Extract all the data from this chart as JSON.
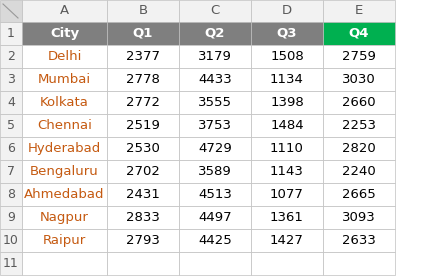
{
  "col_headers": [
    "A",
    "B",
    "C",
    "D",
    "E"
  ],
  "headers": [
    "City",
    "Q1",
    "Q2",
    "Q3",
    "Q4"
  ],
  "cities": [
    "Delhi",
    "Mumbai",
    "Kolkata",
    "Chennai",
    "Hyderabad",
    "Bengaluru",
    "Ahmedabad",
    "Nagpur",
    "Raipur"
  ],
  "q1": [
    2377,
    2778,
    2772,
    2519,
    2530,
    2702,
    2431,
    2833,
    2793
  ],
  "q2": [
    3179,
    4433,
    3555,
    3753,
    4729,
    3589,
    4513,
    4497,
    4425
  ],
  "q3": [
    1508,
    1134,
    1398,
    1484,
    1110,
    1143,
    1077,
    1361,
    1427
  ],
  "q4": [
    2759,
    3030,
    2660,
    2253,
    2820,
    2240,
    2665,
    3093,
    2633
  ],
  "header_bg": "#7F7F7F",
  "q4_header_bg": "#00B050",
  "header_text": "#FFFFFF",
  "row_number_bg": "#F2F2F2",
  "col_header_bg": "#F2F2F2",
  "corner_bg": "#D9D9D9",
  "cell_bg": "#FFFFFF",
  "city_text_color": "#C55A11",
  "data_text_color": "#000000",
  "grid_color": "#BFBFBF",
  "row_number_text": "#595959",
  "col_header_text": "#595959"
}
